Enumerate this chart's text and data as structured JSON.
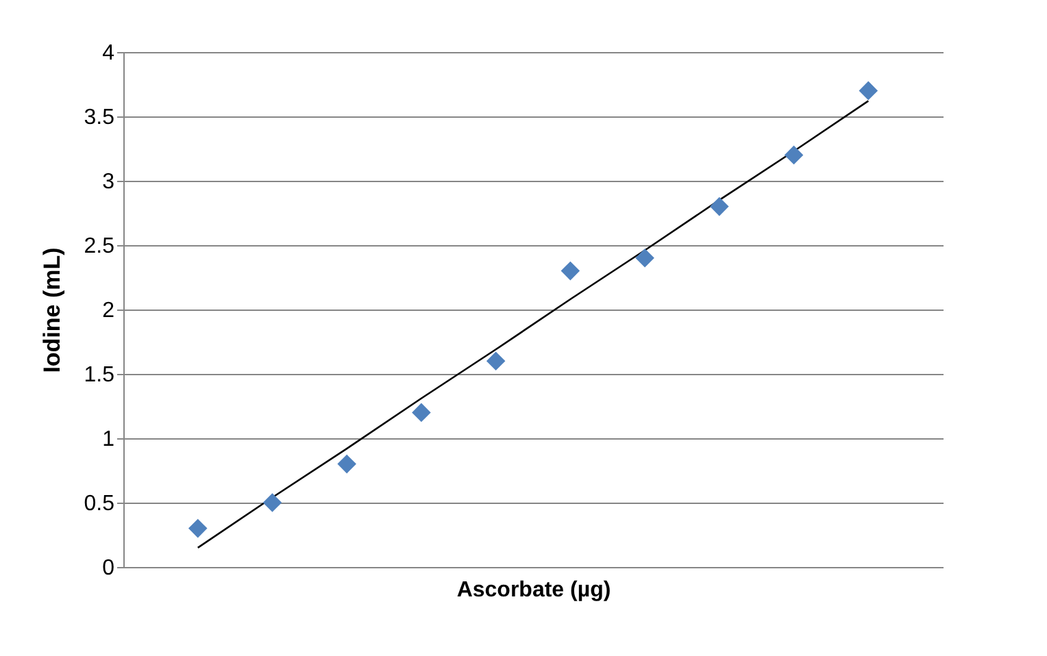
{
  "chart_data": {
    "type": "scatter",
    "xlabel": "Ascorbate (µg)",
    "ylabel": "Iodine (mL)",
    "categories": [
      null,
      null,
      null,
      null,
      null,
      null,
      null,
      null,
      null,
      null
    ],
    "series": [
      {
        "color": "#4f81bd",
        "marker": "diamond",
        "values": [
          0.3,
          0.5,
          0.8,
          1.2,
          1.6,
          2.3,
          2.4,
          2.8,
          3.2,
          3.7
        ]
      },
      {
        "type": "line",
        "color": "#000000",
        "values": [
          0.15,
          0.54,
          0.92,
          1.31,
          1.69,
          2.08,
          2.46,
          2.85,
          3.23,
          3.62
        ]
      }
    ],
    "ylim": [
      0,
      4
    ],
    "yticks": [
      0,
      0.5,
      1,
      1.5,
      2,
      2.5,
      3,
      3.5,
      4
    ],
    "grid": "y",
    "tick_labels": "y"
  }
}
